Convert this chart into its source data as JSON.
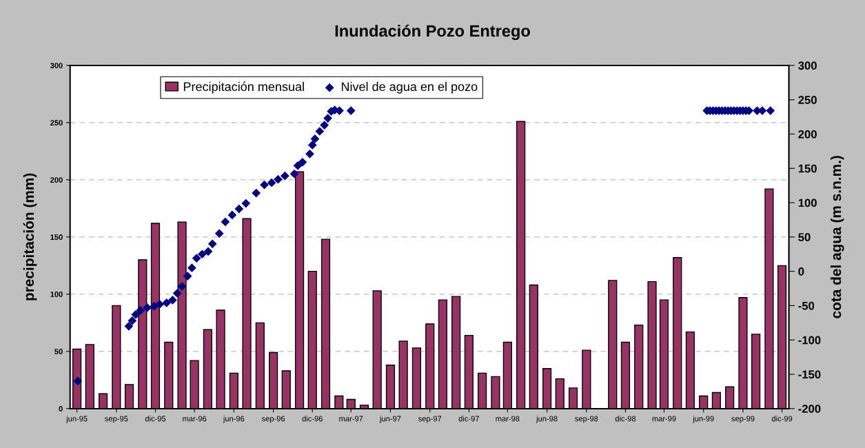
{
  "chart_data": {
    "type": "bar",
    "title": "Inundación Pozo Entrego",
    "ylabel": "precipitación (mm)",
    "y2label": "cota del agua (m s.n.m.)",
    "x": [
      "1995-06",
      "1995-07",
      "1995-08",
      "1995-09",
      "1995-10",
      "1995-11",
      "1995-12",
      "1996-01",
      "1996-02",
      "1996-03",
      "1996-04",
      "1996-05",
      "1996-06",
      "1996-07",
      "1996-08",
      "1996-09",
      "1996-10",
      "1996-11",
      "1996-12",
      "1997-01",
      "1997-02",
      "1997-03",
      "1997-04",
      "1997-05",
      "1997-06",
      "1997-07",
      "1997-08",
      "1997-09",
      "1997-10",
      "1997-11",
      "1997-12",
      "1998-01",
      "1998-02",
      "1998-03",
      "1998-04",
      "1998-05",
      "1998-06",
      "1998-07",
      "1998-08",
      "1998-09",
      "1998-10",
      "1998-11",
      "1998-12",
      "1999-01",
      "1999-02",
      "1999-03",
      "1999-04",
      "1999-05",
      "1999-06",
      "1999-07",
      "1999-08",
      "1999-09",
      "1999-10",
      "1999-11",
      "1999-12"
    ],
    "series": [
      {
        "name": "Precipitación mensual",
        "color": "#993366",
        "values": [
          52,
          56,
          13,
          90,
          21,
          130,
          162,
          58,
          163,
          42,
          69,
          86,
          31,
          166,
          75,
          49,
          33,
          207,
          120,
          148,
          11,
          8,
          3,
          103,
          38,
          59,
          53,
          74,
          95,
          98,
          64,
          31,
          28,
          58,
          251,
          108,
          35,
          26,
          18,
          51,
          null,
          112,
          58,
          73,
          111,
          95,
          132,
          67,
          11,
          14,
          19,
          97,
          65,
          192,
          125
        ]
      },
      {
        "name": "Nivel de agua en el pozo",
        "type": "scatter",
        "axis": "y2",
        "color": "#000080",
        "marker": "diamond",
        "x": [
          "1995-06-03",
          "1995-09-30",
          "1995-10-08",
          "1995-10-16",
          "1995-10-27",
          "1995-11-12",
          "1995-11-28",
          "1995-12-11",
          "1995-12-27",
          "1996-01-10",
          "1996-01-21",
          "1996-02-01",
          "1996-02-14",
          "1996-02-24",
          "1996-03-06",
          "1996-03-19",
          "1996-04-02",
          "1996-04-12",
          "1996-04-28",
          "1996-05-12",
          "1996-05-28",
          "1996-06-13",
          "1996-06-29",
          "1996-07-23",
          "1996-08-11",
          "1996-08-28",
          "1996-09-12",
          "1996-09-28",
          "1996-10-20",
          "1996-10-28",
          "1996-11-08",
          "1996-11-25",
          "1996-12-01",
          "1996-12-07",
          "1996-12-18",
          "1996-12-29",
          "1997-01-06",
          "1997-01-14",
          "1997-01-22",
          "1997-02-02",
          "1997-03-01",
          "1999-06-09",
          "1999-06-16",
          "1999-06-23",
          "1999-06-30",
          "1999-07-07",
          "1999-07-14",
          "1999-07-21",
          "1999-07-28",
          "1999-08-04",
          "1999-08-11",
          "1999-08-18",
          "1999-08-25",
          "1999-09-01",
          "1999-09-08",
          "1999-09-15",
          "1999-10-04",
          "1999-10-16",
          "1999-11-04"
        ],
        "values": [
          -160,
          -80,
          -72,
          -63,
          -57,
          -53,
          -51,
          -48,
          -46,
          -42,
          -32,
          -22,
          -7,
          5,
          19,
          25,
          29,
          40,
          55,
          72,
          82,
          91,
          99,
          114,
          126,
          129,
          134,
          139,
          142,
          154,
          159,
          171,
          184,
          193,
          204,
          213,
          223,
          233,
          235,
          234,
          234,
          234,
          234,
          234,
          234,
          234,
          234,
          234,
          234,
          234,
          234,
          234,
          234,
          234,
          234,
          234,
          234,
          234,
          234
        ]
      }
    ],
    "xlim": [
      "1995-05-16",
      "1999-12-17"
    ],
    "xticks": [
      {
        "value": "1995-06",
        "label": "jun-95"
      },
      {
        "value": "1995-09",
        "label": "sep-95"
      },
      {
        "value": "1995-12",
        "label": "dic-95"
      },
      {
        "value": "1996-03",
        "label": "mar-96"
      },
      {
        "value": "1996-06",
        "label": "jun-96"
      },
      {
        "value": "1996-09",
        "label": "sep-96"
      },
      {
        "value": "1996-12",
        "label": "dic-96"
      },
      {
        "value": "1997-03",
        "label": "mar-97"
      },
      {
        "value": "1997-06",
        "label": "jun-97"
      },
      {
        "value": "1997-09",
        "label": "sep-97"
      },
      {
        "value": "1997-12",
        "label": "dic-97"
      },
      {
        "value": "1998-03",
        "label": "mar-98"
      },
      {
        "value": "1998-06",
        "label": "jun-98"
      },
      {
        "value": "1998-09",
        "label": "sep-98"
      },
      {
        "value": "1998-12",
        "label": "dic-98"
      },
      {
        "value": "1999-03",
        "label": "mar-99"
      },
      {
        "value": "1999-06",
        "label": "jun-99"
      },
      {
        "value": "1999-09",
        "label": "sep-99"
      },
      {
        "value": "1999-12",
        "label": "dic-99"
      }
    ],
    "ylim": [
      0,
      300
    ],
    "yticks": [
      0,
      50,
      100,
      150,
      200,
      250,
      300
    ],
    "y2lim": [
      -200,
      300
    ],
    "y2ticks": [
      -200,
      -150,
      -100,
      -50,
      0,
      50,
      100,
      150,
      200,
      250,
      300
    ],
    "grid": "y",
    "legend": "top"
  }
}
